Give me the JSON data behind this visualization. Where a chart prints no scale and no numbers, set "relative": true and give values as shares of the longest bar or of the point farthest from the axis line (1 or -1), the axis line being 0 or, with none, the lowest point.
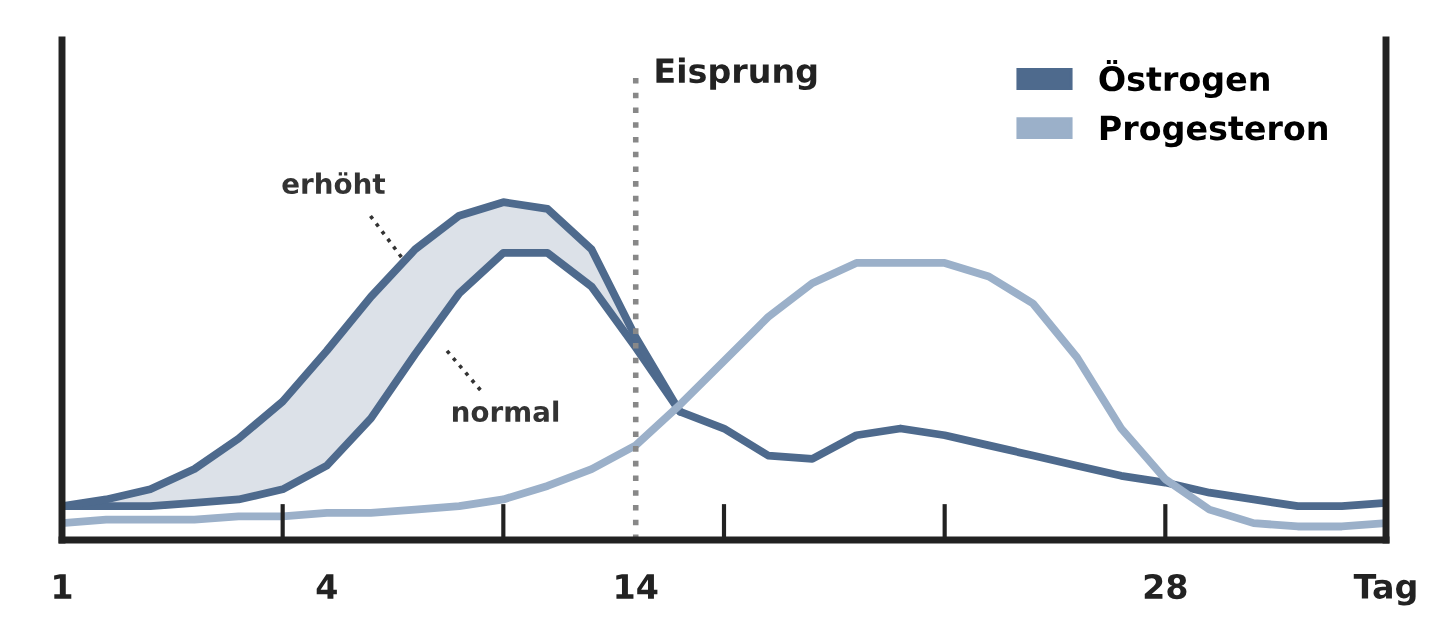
{
  "chart_data": {
    "type": "line",
    "relative": true,
    "categories": [
      "1",
      null,
      null,
      null,
      null,
      null,
      "4",
      null,
      null,
      null,
      null,
      null,
      null,
      "14",
      null,
      null,
      null,
      null,
      null,
      null,
      null,
      null,
      null,
      null,
      null,
      "28",
      null,
      null,
      null,
      null,
      "Tag"
    ],
    "series": [
      {
        "name": "Östrogen",
        "color": "#4e6a8d",
        "values": [
          0.1,
          0.1,
          0.1,
          0.11,
          0.12,
          0.15,
          0.22,
          0.36,
          0.55,
          0.73,
          0.85,
          0.85,
          0.75,
          0.57,
          0.38,
          0.33,
          0.25,
          0.24,
          0.31,
          0.33,
          0.31,
          0.28,
          0.25,
          0.22,
          0.19,
          0.17,
          0.14,
          0.12,
          0.1,
          0.1,
          0.11
        ],
        "upper": [
          0.1,
          0.12,
          0.15,
          0.21,
          0.3,
          0.41,
          0.56,
          0.72,
          0.86,
          0.96,
          1.0,
          0.98,
          0.86,
          0.6,
          0.38,
          null,
          null,
          null,
          null,
          null,
          null,
          null,
          null,
          null,
          null,
          null,
          null,
          null,
          null,
          null,
          null
        ],
        "lower": [
          0.1,
          0.1,
          0.1,
          0.11,
          0.12,
          0.15,
          0.22,
          0.36,
          0.55,
          0.73,
          0.85,
          0.85,
          0.75,
          0.57,
          0.38,
          null,
          null,
          null,
          null,
          null,
          null,
          null,
          null,
          null,
          null,
          null,
          null,
          null,
          null,
          null,
          null
        ]
      },
      {
        "color": "#4e6a8d",
        "values": [
          0.1,
          0.12,
          0.15,
          0.21,
          0.3,
          0.41,
          0.56,
          0.72,
          0.86,
          0.96,
          1.0,
          0.98,
          0.86,
          0.6,
          0.38,
          null,
          null,
          null,
          null,
          null,
          null,
          null,
          null,
          null,
          null,
          null,
          null,
          null,
          null,
          null,
          null
        ]
      },
      {
        "name": "Progesteron",
        "color": "#9bb0c9",
        "values": [
          0.05,
          0.06,
          0.06,
          0.06,
          0.07,
          0.07,
          0.08,
          0.08,
          0.09,
          0.1,
          0.12,
          0.16,
          0.21,
          0.28,
          0.4,
          0.53,
          0.66,
          0.76,
          0.82,
          0.82,
          0.82,
          0.78,
          0.7,
          0.54,
          0.33,
          0.18,
          0.09,
          0.05,
          0.04,
          0.04,
          0.05
        ]
      }
    ],
    "ref_lines": [
      {
        "axis": "x",
        "value": "14",
        "label": "Eisprung",
        "color": "#888888",
        "line_style": "dotted"
      }
    ],
    "annotations": [
      "erhöht",
      "normal"
    ],
    "legend": "top right",
    "grid": false,
    "marker": "none",
    "line_style": "solid"
  }
}
